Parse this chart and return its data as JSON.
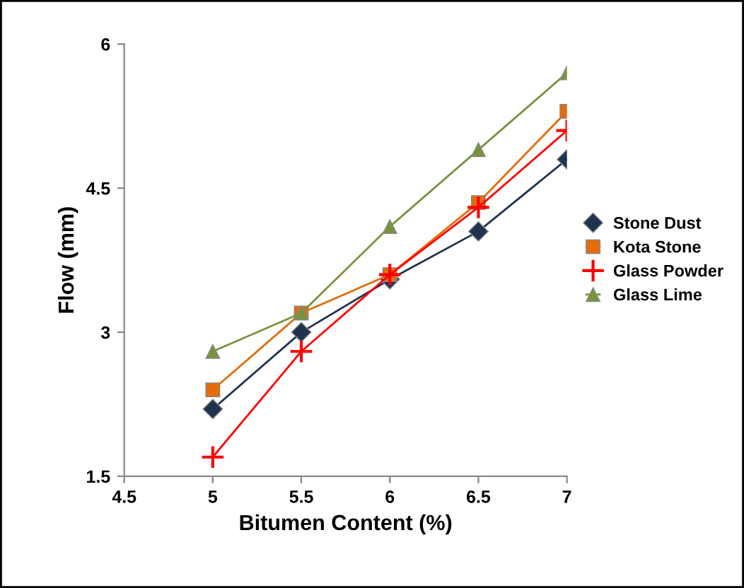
{
  "chart_data": {
    "type": "line",
    "xlabel": "Bitumen Content (%)",
    "ylabel": "Flow (mm)",
    "x": [
      5,
      5.5,
      6,
      6.5,
      7
    ],
    "series": [
      {
        "name": "Stone Dust",
        "color": "#1f3350",
        "marker": "diamond",
        "values": [
          2.2,
          3.0,
          3.55,
          4.05,
          4.8
        ]
      },
      {
        "name": "Kota Stone",
        "color": "#e46c0a",
        "marker": "square",
        "values": [
          2.4,
          3.2,
          3.6,
          4.35,
          5.3
        ]
      },
      {
        "name": "Glass Powder",
        "color": "#ff0000",
        "marker": "cross",
        "values": [
          1.7,
          2.8,
          3.6,
          4.3,
          5.1
        ]
      },
      {
        "name": "Glass Lime",
        "color": "#77933c",
        "marker": "triangle",
        "values": [
          2.8,
          3.2,
          4.1,
          4.9,
          5.7
        ]
      }
    ],
    "xlim": [
      4.5,
      7
    ],
    "xticks": [
      4.5,
      5,
      5.5,
      6,
      6.5,
      7
    ],
    "ylim": [
      1.5,
      6
    ],
    "yticks": [
      1.5,
      3,
      4.5,
      6
    ],
    "grid": false,
    "legend": "right"
  }
}
